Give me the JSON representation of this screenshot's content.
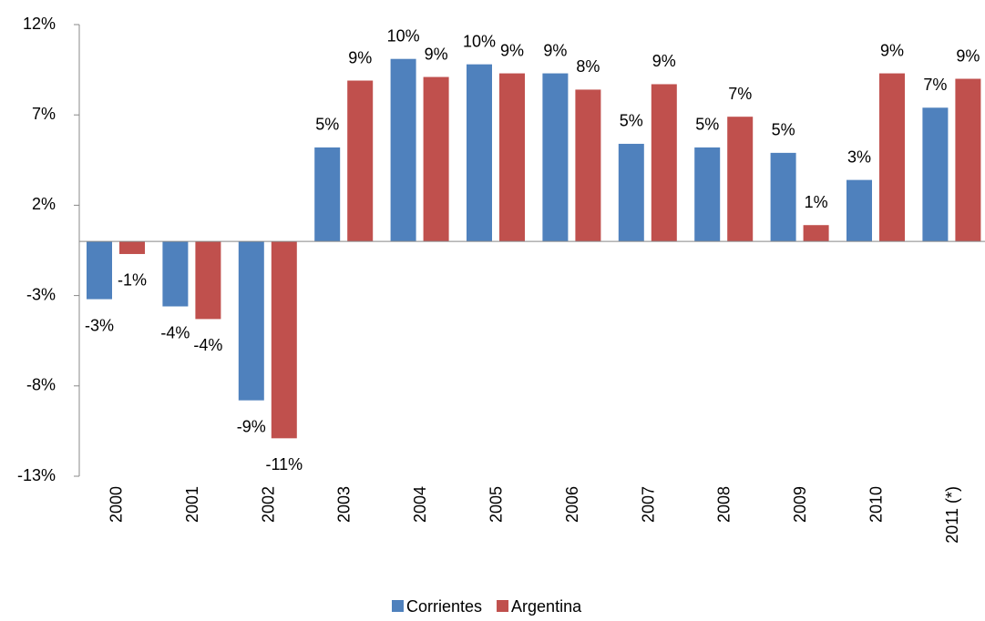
{
  "chart_data": {
    "type": "bar",
    "categories": [
      "2000",
      "2001",
      "2002",
      "2003",
      "2004",
      "2005",
      "2006",
      "2007",
      "2008",
      "2009",
      "2010",
      "2011 (*)"
    ],
    "series": [
      {
        "name": "Corrientes",
        "color": "#4f81bd",
        "values": [
          -3.2,
          -3.6,
          -8.8,
          5.2,
          10.1,
          9.8,
          9.3,
          5.4,
          5.2,
          4.9,
          3.4,
          7.4
        ],
        "value_labels": [
          "-3%",
          "-4%",
          "-9%",
          "5%",
          "10%",
          "10%",
          "9%",
          "5%",
          "5%",
          "5%",
          "3%",
          "7%"
        ]
      },
      {
        "name": "Argentina",
        "color": "#c0504d",
        "values": [
          -0.7,
          -4.3,
          -10.9,
          8.9,
          9.1,
          9.3,
          8.4,
          8.7,
          6.9,
          0.9,
          9.3,
          9.0
        ],
        "value_labels": [
          "-1%",
          "-4%",
          "-11%",
          "9%",
          "9%",
          "9%",
          "8%",
          "9%",
          "7%",
          "1%",
          "9%",
          "9%"
        ]
      }
    ],
    "ylim": [
      -13,
      12
    ],
    "yticks": [
      {
        "value": -13,
        "label": "-13%"
      },
      {
        "value": -8,
        "label": "-8%"
      },
      {
        "value": -3,
        "label": "-3%"
      },
      {
        "value": 2,
        "label": "2%"
      },
      {
        "value": 7,
        "label": "7%"
      },
      {
        "value": 12,
        "label": "12%"
      }
    ],
    "legend": "bottom"
  }
}
